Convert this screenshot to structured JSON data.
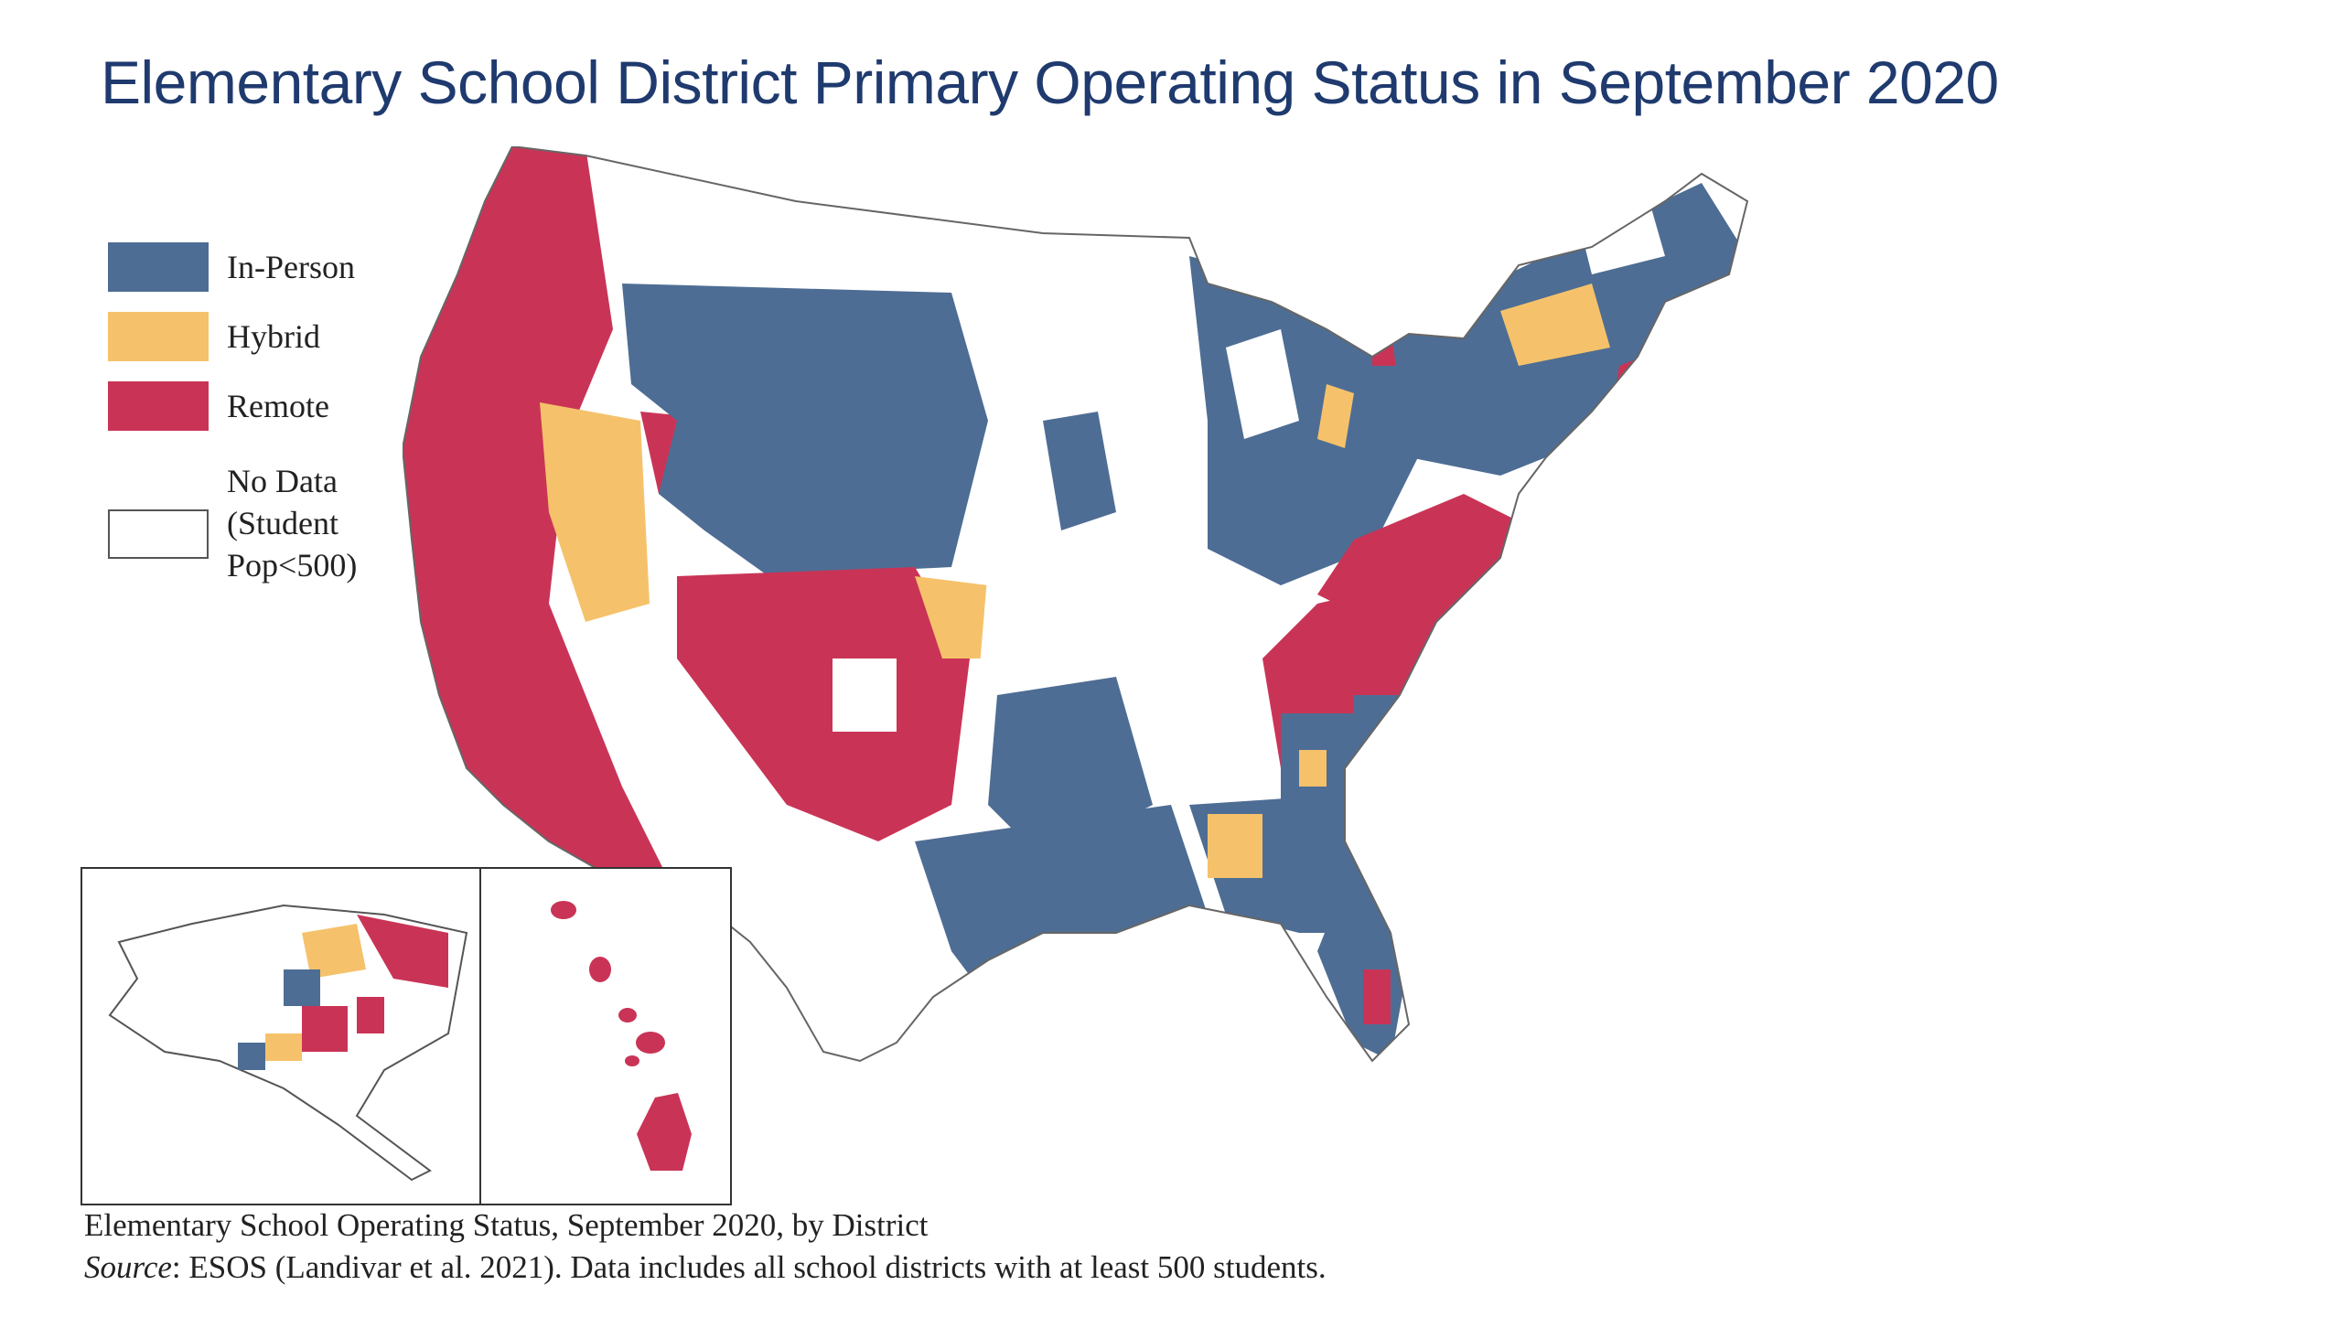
{
  "title": "Elementary School District Primary Operating Status in September 2020",
  "legend": [
    {
      "label": "In-Person",
      "color": "#4e6d94"
    },
    {
      "label": "Hybrid",
      "color": "#f5c26b"
    },
    {
      "label": "Remote",
      "color": "#c93456"
    },
    {
      "label_lines": [
        "No Data",
        "(Student",
        "Pop<500)"
      ],
      "color": "#ffffff"
    }
  ],
  "caption": {
    "line1": "Elementary School Operating Status, September 2020, by District",
    "source_label": "Source",
    "source_text": ": ESOS (Landivar et al. 2021). Data includes all school districts with at least 500 students."
  },
  "colors": {
    "in_person": "#4e6d94",
    "hybrid": "#f5c26b",
    "remote": "#c93456",
    "title": "#1f3a6e"
  }
}
